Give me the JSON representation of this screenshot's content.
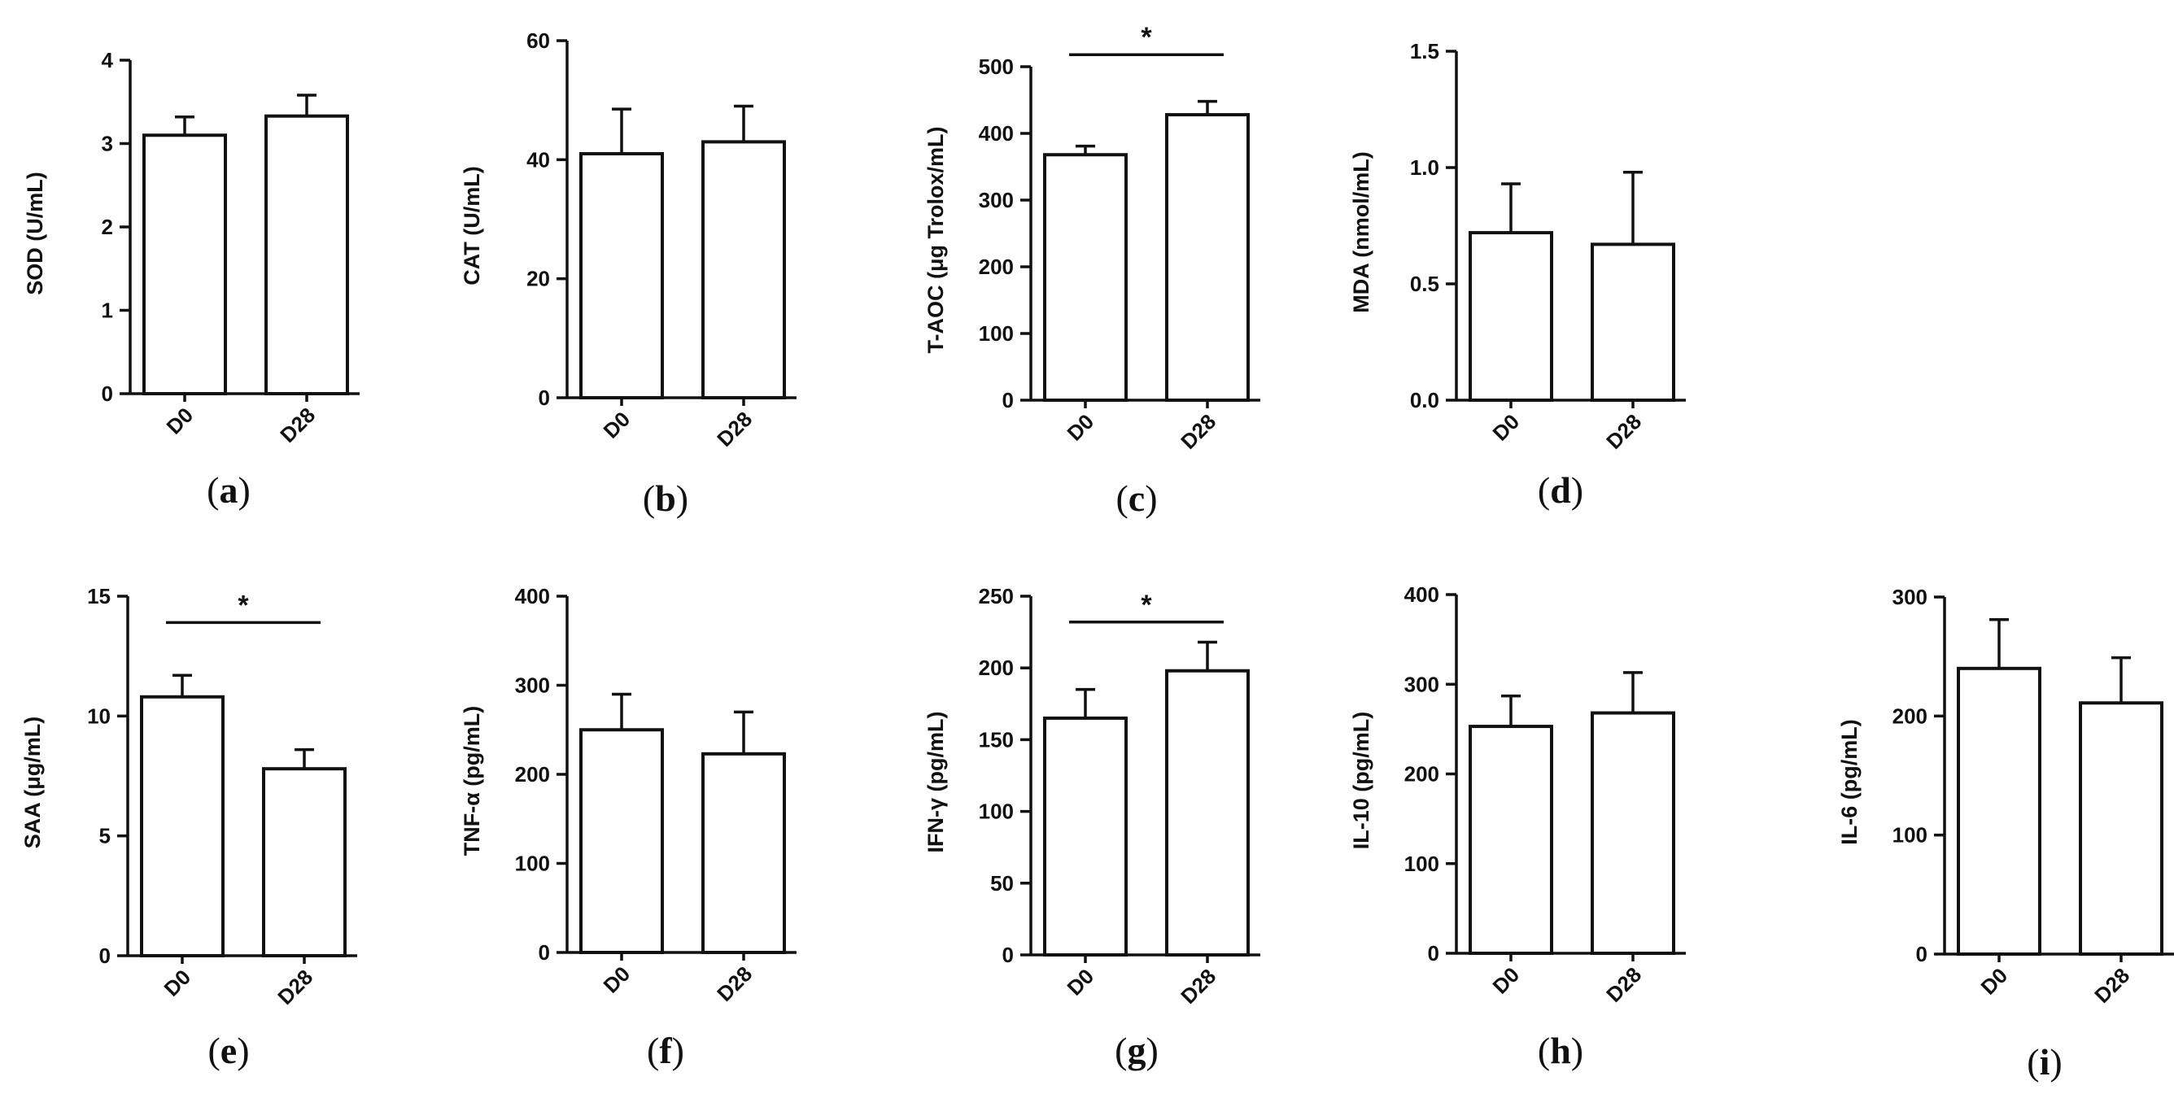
{
  "figure": {
    "background": "#ffffff",
    "bar_fill": "#ffffff",
    "ink_color": "#111111"
  },
  "chart_data": [
    {
      "panel": "a",
      "type": "bar",
      "categories": [
        "D0",
        "D28"
      ],
      "values": [
        3.1,
        3.33
      ],
      "errors": [
        0.22,
        0.25
      ],
      "ylabel": "SOD (U/mL)",
      "ylim": [
        0,
        4
      ],
      "yticks": [
        "0",
        "1",
        "2",
        "3",
        "4"
      ],
      "significance": null
    },
    {
      "panel": "b",
      "type": "bar",
      "categories": [
        "D0",
        "D28"
      ],
      "values": [
        41,
        43
      ],
      "errors": [
        7.5,
        6
      ],
      "ylabel": "CAT (U/mL)",
      "ylim": [
        0,
        60
      ],
      "yticks": [
        "0",
        "20",
        "40",
        "60"
      ],
      "significance": null
    },
    {
      "panel": "c",
      "type": "bar",
      "categories": [
        "D0",
        "D28"
      ],
      "values": [
        368,
        428
      ],
      "errors": [
        13,
        20
      ],
      "ylabel": "T-AOC (μg Trolox/mL)",
      "ylim": [
        0,
        500
      ],
      "yticks": [
        "0",
        "100",
        "200",
        "300",
        "400",
        "500"
      ],
      "significance": {
        "label": "*",
        "level": 518
      }
    },
    {
      "panel": "d",
      "type": "bar",
      "categories": [
        "D0",
        "D28"
      ],
      "values": [
        0.72,
        0.67
      ],
      "errors": [
        0.21,
        0.31
      ],
      "ylabel": "MDA (nmol/mL)",
      "ylim": [
        0,
        1.5
      ],
      "yticks": [
        "0.0",
        "0.5",
        "1.0",
        "1.5"
      ],
      "significance": null
    },
    {
      "panel": "e",
      "type": "bar",
      "categories": [
        "D0",
        "D28"
      ],
      "values": [
        10.8,
        7.8
      ],
      "errors": [
        0.9,
        0.8
      ],
      "ylabel": "SAA (μg/mL)",
      "ylim": [
        0,
        15
      ],
      "yticks": [
        "0",
        "5",
        "10",
        "15"
      ],
      "significance": {
        "label": "*",
        "level": 13.9
      }
    },
    {
      "panel": "f",
      "type": "bar",
      "categories": [
        "D0",
        "D28"
      ],
      "values": [
        250,
        223
      ],
      "errors": [
        40,
        47
      ],
      "ylabel": "TNF-α (pg/mL)",
      "ylim": [
        0,
        400
      ],
      "yticks": [
        "0",
        "100",
        "200",
        "300",
        "400"
      ],
      "significance": null
    },
    {
      "panel": "g",
      "type": "bar",
      "categories": [
        "D0",
        "D28"
      ],
      "values": [
        165,
        198
      ],
      "errors": [
        20,
        20
      ],
      "ylabel": "IFN-γ (pg/mL)",
      "ylim": [
        0,
        250
      ],
      "yticks": [
        "0",
        "50",
        "100",
        "150",
        "200",
        "250"
      ],
      "significance": {
        "label": "*",
        "level": 232
      }
    },
    {
      "panel": "h",
      "type": "bar",
      "categories": [
        "D0",
        "D28"
      ],
      "values": [
        253,
        268
      ],
      "errors": [
        34,
        45
      ],
      "ylabel": "IL-10 (pg/mL)",
      "ylim": [
        0,
        400
      ],
      "yticks": [
        "0",
        "100",
        "200",
        "300",
        "400"
      ],
      "significance": null
    },
    {
      "panel": "i",
      "type": "bar",
      "categories": [
        "D0",
        "D28"
      ],
      "values": [
        240,
        211
      ],
      "errors": [
        41,
        38
      ],
      "ylabel": "IL-6 (pg/mL)",
      "ylim": [
        0,
        300
      ],
      "yticks": [
        "0",
        "100",
        "200",
        "300"
      ],
      "significance": null
    }
  ]
}
